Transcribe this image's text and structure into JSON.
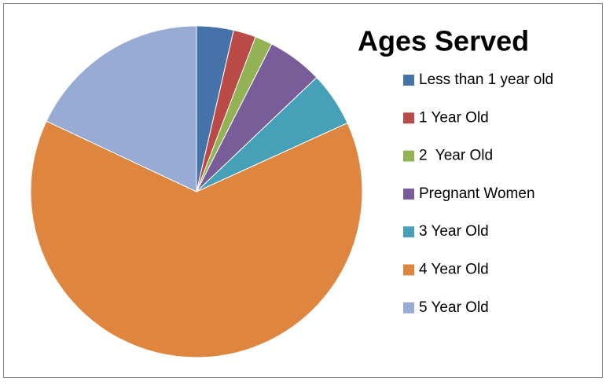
{
  "chart_data": {
    "type": "pie",
    "title": "Ages Served",
    "categories": [
      "Less than 1 year old",
      "1 Year Old",
      "2  Year Old",
      "Pregnant Women",
      "3 Year Old",
      "4 Year Old",
      "5 Year Old"
    ],
    "values": [
      3.6,
      2.2,
      1.7,
      5.4,
      5.3,
      63.8,
      18.0
    ],
    "colors": [
      "#4672aa",
      "#b94a46",
      "#92b254",
      "#795d99",
      "#46a0b8",
      "#de8540",
      "#97abd4"
    ],
    "legend": "right"
  }
}
